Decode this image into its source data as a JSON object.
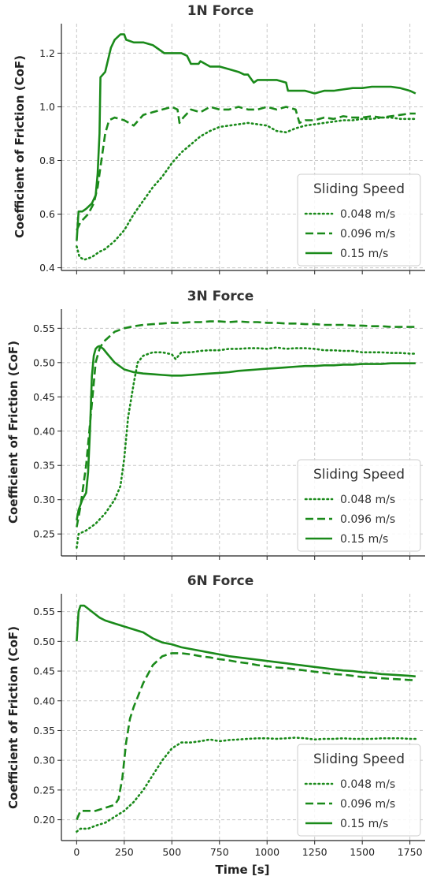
{
  "chart_data": [
    {
      "type": "line",
      "title": "1N Force",
      "ylabel": "Coefficient of Friction (CoF)",
      "xlabel": "",
      "xlim": [
        -80,
        1830
      ],
      "ylim": [
        0.39,
        1.31
      ],
      "xticks": [
        0,
        250,
        500,
        750,
        1000,
        1250,
        1500,
        1750
      ],
      "yticks": [
        0.4,
        0.6,
        0.8,
        1.0,
        1.2
      ],
      "ytick_labels": [
        "0.4",
        "0.6",
        "0.8",
        "1.0",
        "1.2"
      ],
      "grid": true,
      "legend": {
        "title": "Sliding Speed",
        "placement": "lower right"
      },
      "color": "#1a8a1a",
      "series": [
        {
          "name": "0.048 m/s",
          "style": "dotted",
          "x": [
            0,
            15,
            40,
            80,
            120,
            150,
            200,
            250,
            300,
            350,
            400,
            450,
            500,
            550,
            600,
            650,
            700,
            750,
            800,
            850,
            900,
            950,
            1000,
            1050,
            1100,
            1150,
            1200,
            1250,
            1300,
            1350,
            1400,
            1450,
            1500,
            1550,
            1600,
            1650,
            1700,
            1750,
            1780
          ],
          "y": [
            0.48,
            0.44,
            0.43,
            0.44,
            0.46,
            0.47,
            0.5,
            0.54,
            0.6,
            0.65,
            0.7,
            0.74,
            0.79,
            0.83,
            0.86,
            0.89,
            0.91,
            0.925,
            0.93,
            0.935,
            0.94,
            0.935,
            0.93,
            0.91,
            0.905,
            0.92,
            0.93,
            0.935,
            0.94,
            0.945,
            0.95,
            0.95,
            0.955,
            0.955,
            0.96,
            0.96,
            0.955,
            0.955,
            0.955
          ]
        },
        {
          "name": "0.096 m/s",
          "style": "dashed",
          "x": [
            0,
            20,
            60,
            90,
            110,
            130,
            150,
            170,
            200,
            250,
            300,
            350,
            400,
            450,
            500,
            530,
            540,
            560,
            600,
            650,
            700,
            750,
            800,
            850,
            900,
            950,
            1000,
            1050,
            1100,
            1150,
            1170,
            1200,
            1250,
            1300,
            1350,
            1400,
            1450,
            1500,
            1550,
            1600,
            1650,
            1700,
            1750,
            1780
          ],
          "y": [
            0.54,
            0.57,
            0.6,
            0.64,
            0.7,
            0.8,
            0.9,
            0.95,
            0.96,
            0.95,
            0.93,
            0.97,
            0.98,
            0.99,
            1.0,
            0.99,
            0.94,
            0.96,
            0.99,
            0.98,
            1.0,
            0.99,
            0.99,
            1.0,
            0.99,
            0.99,
            1.0,
            0.99,
            1.0,
            0.99,
            0.94,
            0.95,
            0.95,
            0.96,
            0.955,
            0.965,
            0.96,
            0.96,
            0.965,
            0.96,
            0.965,
            0.97,
            0.975,
            0.975
          ]
        },
        {
          "name": "0.15 m/s",
          "style": "solid",
          "x": [
            0,
            10,
            30,
            50,
            80,
            100,
            110,
            120,
            125,
            150,
            180,
            200,
            230,
            250,
            260,
            300,
            350,
            400,
            440,
            460,
            500,
            550,
            580,
            600,
            640,
            650,
            700,
            750,
            800,
            850,
            880,
            900,
            930,
            950,
            1000,
            1050,
            1100,
            1110,
            1150,
            1200,
            1250,
            1300,
            1350,
            1400,
            1450,
            1500,
            1550,
            1600,
            1650,
            1700,
            1750,
            1780
          ],
          "y": [
            0.5,
            0.61,
            0.61,
            0.62,
            0.64,
            0.67,
            0.75,
            0.9,
            1.11,
            1.13,
            1.22,
            1.25,
            1.27,
            1.27,
            1.25,
            1.24,
            1.24,
            1.23,
            1.21,
            1.2,
            1.2,
            1.2,
            1.19,
            1.16,
            1.16,
            1.17,
            1.15,
            1.15,
            1.14,
            1.13,
            1.12,
            1.12,
            1.09,
            1.1,
            1.1,
            1.1,
            1.09,
            1.06,
            1.06,
            1.06,
            1.05,
            1.06,
            1.06,
            1.065,
            1.07,
            1.07,
            1.075,
            1.075,
            1.075,
            1.07,
            1.06,
            1.05
          ]
        }
      ]
    },
    {
      "type": "line",
      "title": "3N Force",
      "ylabel": "Coefficient of Friction (CoF)",
      "xlabel": "",
      "xlim": [
        -80,
        1830
      ],
      "ylim": [
        0.218,
        0.578
      ],
      "xticks": [
        0,
        250,
        500,
        750,
        1000,
        1250,
        1500,
        1750
      ],
      "yticks": [
        0.25,
        0.3,
        0.35,
        0.4,
        0.45,
        0.5,
        0.55
      ],
      "ytick_labels": [
        "0.25",
        "0.30",
        "0.35",
        "0.40",
        "0.45",
        "0.50",
        "0.55"
      ],
      "grid": true,
      "legend": {
        "title": "Sliding Speed",
        "placement": "lower right"
      },
      "color": "#1a8a1a",
      "series": [
        {
          "name": "0.048 m/s",
          "style": "dotted",
          "x": [
            0,
            10,
            50,
            100,
            150,
            200,
            230,
            250,
            270,
            300,
            320,
            350,
            400,
            450,
            500,
            520,
            550,
            600,
            650,
            700,
            750,
            800,
            850,
            900,
            950,
            1000,
            1050,
            1100,
            1150,
            1200,
            1250,
            1300,
            1350,
            1400,
            1450,
            1500,
            1550,
            1600,
            1650,
            1700,
            1750,
            1780
          ],
          "y": [
            0.23,
            0.25,
            0.255,
            0.265,
            0.28,
            0.3,
            0.32,
            0.36,
            0.42,
            0.47,
            0.5,
            0.51,
            0.515,
            0.515,
            0.512,
            0.505,
            0.515,
            0.515,
            0.517,
            0.518,
            0.518,
            0.52,
            0.52,
            0.521,
            0.521,
            0.52,
            0.522,
            0.52,
            0.521,
            0.521,
            0.52,
            0.518,
            0.518,
            0.517,
            0.517,
            0.515,
            0.515,
            0.515,
            0.514,
            0.514,
            0.513,
            0.513
          ]
        },
        {
          "name": "0.096 m/s",
          "style": "dashed",
          "x": [
            0,
            20,
            50,
            80,
            100,
            120,
            140,
            160,
            180,
            200,
            250,
            300,
            350,
            400,
            450,
            500,
            550,
            600,
            650,
            700,
            750,
            800,
            850,
            900,
            950,
            1000,
            1050,
            1100,
            1150,
            1200,
            1250,
            1300,
            1350,
            1400,
            1450,
            1500,
            1550,
            1600,
            1650,
            1700,
            1750,
            1780
          ],
          "y": [
            0.26,
            0.29,
            0.35,
            0.44,
            0.5,
            0.52,
            0.53,
            0.535,
            0.54,
            0.545,
            0.55,
            0.553,
            0.555,
            0.556,
            0.557,
            0.558,
            0.558,
            0.559,
            0.559,
            0.56,
            0.56,
            0.559,
            0.56,
            0.559,
            0.559,
            0.558,
            0.558,
            0.557,
            0.557,
            0.556,
            0.556,
            0.555,
            0.555,
            0.555,
            0.554,
            0.554,
            0.553,
            0.553,
            0.552,
            0.552,
            0.552,
            0.552
          ]
        },
        {
          "name": "0.15 m/s",
          "style": "solid",
          "x": [
            0,
            10,
            30,
            50,
            60,
            70,
            80,
            90,
            100,
            110,
            120,
            140,
            160,
            200,
            250,
            300,
            350,
            400,
            450,
            500,
            550,
            600,
            650,
            700,
            750,
            800,
            850,
            900,
            950,
            1000,
            1050,
            1100,
            1150,
            1200,
            1250,
            1300,
            1350,
            1400,
            1450,
            1500,
            1550,
            1600,
            1650,
            1700,
            1750,
            1780
          ],
          "y": [
            0.27,
            0.285,
            0.3,
            0.31,
            0.34,
            0.4,
            0.48,
            0.51,
            0.52,
            0.523,
            0.524,
            0.52,
            0.513,
            0.5,
            0.49,
            0.486,
            0.484,
            0.483,
            0.482,
            0.481,
            0.481,
            0.482,
            0.483,
            0.484,
            0.485,
            0.486,
            0.488,
            0.489,
            0.49,
            0.491,
            0.492,
            0.493,
            0.494,
            0.495,
            0.495,
            0.496,
            0.496,
            0.497,
            0.497,
            0.498,
            0.498,
            0.498,
            0.499,
            0.499,
            0.499,
            0.499
          ]
        }
      ]
    },
    {
      "type": "line",
      "title": "6N Force",
      "ylabel": "Coefficient of Friction (CoF)",
      "xlabel": "Time [s]",
      "xlim": [
        -80,
        1830
      ],
      "ylim": [
        0.165,
        0.58
      ],
      "xticks": [
        0,
        250,
        500,
        750,
        1000,
        1250,
        1500,
        1750
      ],
      "xtick_labels": [
        "0",
        "250",
        "500",
        "750",
        "1000",
        "1250",
        "1500",
        "1750"
      ],
      "yticks": [
        0.2,
        0.25,
        0.3,
        0.35,
        0.4,
        0.45,
        0.5,
        0.55
      ],
      "ytick_labels": [
        "0.20",
        "0.25",
        "0.30",
        "0.35",
        "0.40",
        "0.45",
        "0.50",
        "0.55"
      ],
      "grid": true,
      "legend": {
        "title": "Sliding Speed",
        "placement": "lower right"
      },
      "color": "#1a8a1a",
      "series": [
        {
          "name": "0.048 m/s",
          "style": "dotted",
          "x": [
            0,
            20,
            60,
            100,
            150,
            200,
            250,
            300,
            350,
            400,
            450,
            500,
            550,
            600,
            650,
            700,
            750,
            800,
            850,
            900,
            950,
            1000,
            1050,
            1100,
            1150,
            1200,
            1250,
            1300,
            1350,
            1400,
            1450,
            1500,
            1550,
            1600,
            1650,
            1700,
            1750,
            1780
          ],
          "y": [
            0.18,
            0.185,
            0.185,
            0.19,
            0.195,
            0.205,
            0.215,
            0.23,
            0.25,
            0.275,
            0.3,
            0.32,
            0.33,
            0.33,
            0.332,
            0.335,
            0.332,
            0.334,
            0.335,
            0.336,
            0.337,
            0.337,
            0.336,
            0.337,
            0.338,
            0.337,
            0.335,
            0.336,
            0.336,
            0.337,
            0.336,
            0.336,
            0.336,
            0.337,
            0.337,
            0.337,
            0.336,
            0.336
          ]
        },
        {
          "name": "0.096 m/s",
          "style": "dashed",
          "x": [
            0,
            20,
            60,
            100,
            150,
            200,
            220,
            240,
            260,
            280,
            300,
            350,
            400,
            450,
            500,
            550,
            600,
            650,
            700,
            750,
            800,
            850,
            900,
            950,
            1000,
            1050,
            1100,
            1150,
            1200,
            1250,
            1300,
            1350,
            1400,
            1450,
            1500,
            1550,
            1600,
            1650,
            1700,
            1750,
            1780
          ],
          "y": [
            0.2,
            0.215,
            0.215,
            0.215,
            0.22,
            0.225,
            0.235,
            0.27,
            0.33,
            0.37,
            0.39,
            0.43,
            0.46,
            0.475,
            0.48,
            0.48,
            0.478,
            0.475,
            0.473,
            0.47,
            0.468,
            0.465,
            0.463,
            0.46,
            0.458,
            0.456,
            0.455,
            0.453,
            0.451,
            0.449,
            0.447,
            0.445,
            0.444,
            0.442,
            0.44,
            0.439,
            0.438,
            0.437,
            0.436,
            0.435,
            0.435
          ]
        },
        {
          "name": "0.15 m/s",
          "style": "solid",
          "x": [
            0,
            10,
            20,
            40,
            60,
            80,
            100,
            120,
            150,
            200,
            250,
            300,
            350,
            400,
            450,
            500,
            550,
            600,
            650,
            700,
            750,
            800,
            850,
            900,
            950,
            1000,
            1050,
            1100,
            1150,
            1200,
            1250,
            1300,
            1350,
            1400,
            1450,
            1500,
            1550,
            1600,
            1650,
            1700,
            1750,
            1780
          ],
          "y": [
            0.5,
            0.55,
            0.56,
            0.56,
            0.555,
            0.55,
            0.545,
            0.54,
            0.535,
            0.53,
            0.525,
            0.52,
            0.515,
            0.505,
            0.498,
            0.495,
            0.49,
            0.487,
            0.484,
            0.481,
            0.478,
            0.475,
            0.473,
            0.471,
            0.469,
            0.467,
            0.465,
            0.463,
            0.461,
            0.459,
            0.457,
            0.455,
            0.453,
            0.451,
            0.45,
            0.448,
            0.447,
            0.445,
            0.444,
            0.443,
            0.442,
            0.441
          ]
        }
      ]
    }
  ]
}
